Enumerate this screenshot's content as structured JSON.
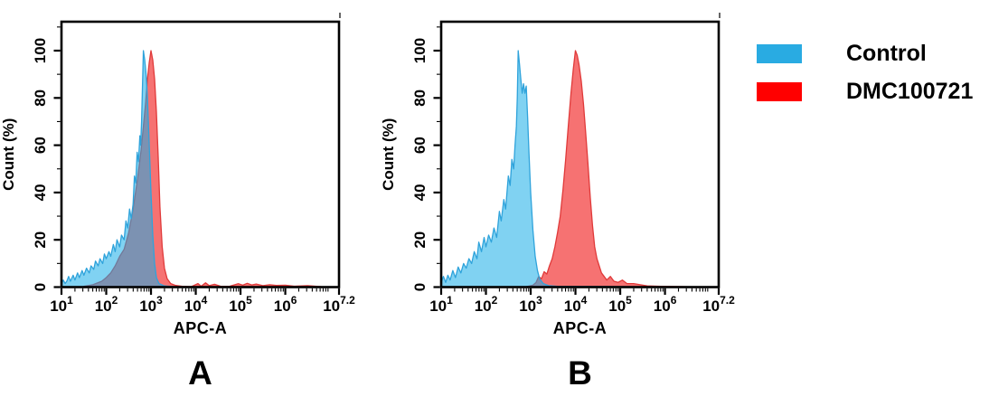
{
  "legend": {
    "items": [
      {
        "label": "Control",
        "color": "#29ABE2"
      },
      {
        "label": "DMC100721",
        "color": "#FF0000"
      }
    ]
  },
  "chart_data": [
    {
      "type": "area",
      "panel_label": "A",
      "title": "",
      "xlabel": "APC-A",
      "ylabel": "Count  (%)",
      "x_scale": "log10",
      "xlim_log": [
        1,
        7.2
      ],
      "ylim": [
        0,
        100
      ],
      "grid": false,
      "legend_position": "outside-right",
      "x_ticks": [
        {
          "base": "10",
          "exp": "1",
          "log": 1
        },
        {
          "base": "10",
          "exp": "2",
          "log": 2
        },
        {
          "base": "10",
          "exp": "3",
          "log": 3
        },
        {
          "base": "10",
          "exp": "4",
          "log": 4
        },
        {
          "base": "10",
          "exp": "5",
          "log": 5
        },
        {
          "base": "10",
          "exp": "6",
          "log": 6
        },
        {
          "base": "10",
          "exp": "7.2",
          "log": 7.2
        }
      ],
      "y_ticks": [
        0,
        20,
        40,
        60,
        80,
        100
      ],
      "series": [
        {
          "name": "DMC100721",
          "fill": "#F23B3B",
          "fill_opacity": 0.72,
          "stroke": "#E03A3A",
          "points_log_pct": [
            [
              1.5,
              0.3
            ],
            [
              1.7,
              1
            ],
            [
              1.9,
              2.5
            ],
            [
              2.0,
              4
            ],
            [
              2.1,
              6
            ],
            [
              2.2,
              9
            ],
            [
              2.3,
              13
            ],
            [
              2.4,
              16
            ],
            [
              2.5,
              23
            ],
            [
              2.6,
              33
            ],
            [
              2.7,
              46
            ],
            [
              2.78,
              58
            ],
            [
              2.84,
              70
            ],
            [
              2.88,
              78
            ],
            [
              2.92,
              88
            ],
            [
              2.96,
              95
            ],
            [
              3.0,
              100
            ],
            [
              3.04,
              96
            ],
            [
              3.08,
              88
            ],
            [
              3.12,
              74
            ],
            [
              3.16,
              55
            ],
            [
              3.2,
              34
            ],
            [
              3.25,
              17
            ],
            [
              3.3,
              8
            ],
            [
              3.36,
              3.5
            ],
            [
              3.44,
              1.5
            ],
            [
              3.55,
              0.7
            ],
            [
              3.7,
              0.3
            ],
            [
              3.9,
              0.2
            ],
            [
              4.05,
              1.5
            ],
            [
              4.12,
              0.4
            ],
            [
              4.22,
              1.8
            ],
            [
              4.3,
              0.6
            ],
            [
              4.42,
              1.2
            ],
            [
              4.55,
              0.4
            ],
            [
              4.75,
              0.3
            ],
            [
              4.95,
              1.4
            ],
            [
              5.05,
              0.8
            ],
            [
              5.15,
              1.6
            ],
            [
              5.25,
              0.9
            ],
            [
              5.35,
              1.3
            ],
            [
              5.5,
              0.6
            ],
            [
              5.65,
              1.0
            ],
            [
              5.8,
              0.7
            ],
            [
              6.0,
              0.8
            ],
            [
              6.2,
              0.4
            ],
            [
              6.5,
              0.6
            ],
            [
              6.8,
              0.2
            ],
            [
              7.15,
              0
            ]
          ]
        },
        {
          "name": "Control",
          "fill": "#18ADE8",
          "fill_opacity": 0.55,
          "stroke": "#2FA3DB",
          "points_log_pct": [
            [
              1.0,
              1.5
            ],
            [
              1.04,
              3
            ],
            [
              1.08,
              1.5
            ],
            [
              1.12,
              2.5
            ],
            [
              1.16,
              4.5
            ],
            [
              1.2,
              2.5
            ],
            [
              1.26,
              5
            ],
            [
              1.3,
              3
            ],
            [
              1.36,
              6
            ],
            [
              1.4,
              4
            ],
            [
              1.46,
              7
            ],
            [
              1.5,
              5
            ],
            [
              1.56,
              8
            ],
            [
              1.62,
              6
            ],
            [
              1.66,
              9
            ],
            [
              1.72,
              7.5
            ],
            [
              1.76,
              11
            ],
            [
              1.82,
              9
            ],
            [
              1.86,
              12
            ],
            [
              1.92,
              10
            ],
            [
              1.96,
              14
            ],
            [
              2.0,
              12
            ],
            [
              2.06,
              15
            ],
            [
              2.1,
              13
            ],
            [
              2.16,
              18
            ],
            [
              2.2,
              15
            ],
            [
              2.24,
              20
            ],
            [
              2.3,
              17
            ],
            [
              2.34,
              22
            ],
            [
              2.4,
              20
            ],
            [
              2.44,
              28
            ],
            [
              2.48,
              25
            ],
            [
              2.52,
              33
            ],
            [
              2.56,
              29
            ],
            [
              2.6,
              35
            ],
            [
              2.63,
              47
            ],
            [
              2.66,
              44
            ],
            [
              2.69,
              57
            ],
            [
              2.72,
              53
            ],
            [
              2.75,
              64
            ],
            [
              2.77,
              60
            ],
            [
              2.79,
              70
            ],
            [
              2.81,
              85
            ],
            [
              2.83,
              100
            ],
            [
              2.86,
              96
            ],
            [
              2.89,
              90
            ],
            [
              2.92,
              80
            ],
            [
              2.96,
              60
            ],
            [
              3.0,
              40
            ],
            [
              3.04,
              22
            ],
            [
              3.08,
              10
            ],
            [
              3.12,
              4
            ],
            [
              3.18,
              1.5
            ],
            [
              3.3,
              0.5
            ],
            [
              3.5,
              0.2
            ],
            [
              7.15,
              0
            ]
          ]
        }
      ]
    },
    {
      "type": "area",
      "panel_label": "B",
      "title": "",
      "xlabel": "APC-A",
      "ylabel": "Count  (%)",
      "x_scale": "log10",
      "xlim_log": [
        1,
        7.2
      ],
      "ylim": [
        0,
        100
      ],
      "grid": false,
      "legend_position": "outside-right",
      "x_ticks": [
        {
          "base": "10",
          "exp": "1",
          "log": 1
        },
        {
          "base": "10",
          "exp": "2",
          "log": 2
        },
        {
          "base": "10",
          "exp": "3",
          "log": 3
        },
        {
          "base": "10",
          "exp": "4",
          "log": 4
        },
        {
          "base": "10",
          "exp": "5",
          "log": 5
        },
        {
          "base": "10",
          "exp": "6",
          "log": 6
        },
        {
          "base": "10",
          "exp": "7.2",
          "log": 7.2
        }
      ],
      "y_ticks": [
        0,
        20,
        40,
        60,
        80,
        100
      ],
      "series": [
        {
          "name": "DMC100721",
          "fill": "#F23B3B",
          "fill_opacity": 0.72,
          "stroke": "#E03A3A",
          "points_log_pct": [
            [
              2.9,
              0.2
            ],
            [
              3.05,
              0.8
            ],
            [
              3.12,
              2
            ],
            [
              3.18,
              4.5
            ],
            [
              3.24,
              3.5
            ],
            [
              3.3,
              6.5
            ],
            [
              3.36,
              5.5
            ],
            [
              3.42,
              9
            ],
            [
              3.48,
              12
            ],
            [
              3.54,
              17
            ],
            [
              3.6,
              23
            ],
            [
              3.66,
              30
            ],
            [
              3.72,
              41
            ],
            [
              3.78,
              54
            ],
            [
              3.84,
              68
            ],
            [
              3.9,
              82
            ],
            [
              3.95,
              92
            ],
            [
              4.0,
              100
            ],
            [
              4.04,
              98
            ],
            [
              4.08,
              94
            ],
            [
              4.13,
              87
            ],
            [
              4.18,
              77
            ],
            [
              4.23,
              65
            ],
            [
              4.28,
              52
            ],
            [
              4.33,
              38
            ],
            [
              4.38,
              26
            ],
            [
              4.43,
              17
            ],
            [
              4.48,
              12
            ],
            [
              4.53,
              9
            ],
            [
              4.58,
              6
            ],
            [
              4.64,
              4.5
            ],
            [
              4.7,
              3
            ],
            [
              4.78,
              4.5
            ],
            [
              4.86,
              2.5
            ],
            [
              4.95,
              2
            ],
            [
              5.05,
              3
            ],
            [
              5.15,
              1.5
            ],
            [
              5.3,
              1.5
            ],
            [
              5.45,
              1
            ],
            [
              5.6,
              0.5
            ],
            [
              5.9,
              0.3
            ],
            [
              7.15,
              0
            ]
          ]
        },
        {
          "name": "Control",
          "fill": "#18ADE8",
          "fill_opacity": 0.55,
          "stroke": "#2FA3DB",
          "points_log_pct": [
            [
              1.0,
              2
            ],
            [
              1.05,
              4.5
            ],
            [
              1.1,
              2
            ],
            [
              1.15,
              5
            ],
            [
              1.2,
              3
            ],
            [
              1.26,
              7
            ],
            [
              1.32,
              4
            ],
            [
              1.38,
              8.5
            ],
            [
              1.44,
              6
            ],
            [
              1.5,
              10
            ],
            [
              1.56,
              8
            ],
            [
              1.62,
              12
            ],
            [
              1.68,
              10
            ],
            [
              1.74,
              15
            ],
            [
              1.8,
              12
            ],
            [
              1.84,
              19
            ],
            [
              1.9,
              15
            ],
            [
              1.96,
              21
            ],
            [
              2.0,
              17
            ],
            [
              2.06,
              22
            ],
            [
              2.12,
              19
            ],
            [
              2.18,
              25
            ],
            [
              2.24,
              21
            ],
            [
              2.3,
              32
            ],
            [
              2.34,
              28
            ],
            [
              2.4,
              37
            ],
            [
              2.44,
              33
            ],
            [
              2.5,
              47
            ],
            [
              2.54,
              43
            ],
            [
              2.58,
              54
            ],
            [
              2.62,
              50
            ],
            [
              2.65,
              60
            ],
            [
              2.68,
              68
            ],
            [
              2.7,
              80
            ],
            [
              2.72,
              100
            ],
            [
              2.75,
              94
            ],
            [
              2.78,
              88
            ],
            [
              2.81,
              82
            ],
            [
              2.84,
              86
            ],
            [
              2.87,
              82
            ],
            [
              2.9,
              85
            ],
            [
              2.93,
              72
            ],
            [
              2.96,
              57
            ],
            [
              3.0,
              40
            ],
            [
              3.05,
              24
            ],
            [
              3.1,
              13
            ],
            [
              3.15,
              7
            ],
            [
              3.2,
              3.5
            ],
            [
              3.28,
              1.5
            ],
            [
              3.4,
              0.6
            ],
            [
              3.6,
              0.3
            ],
            [
              7.15,
              0
            ]
          ]
        }
      ]
    }
  ]
}
